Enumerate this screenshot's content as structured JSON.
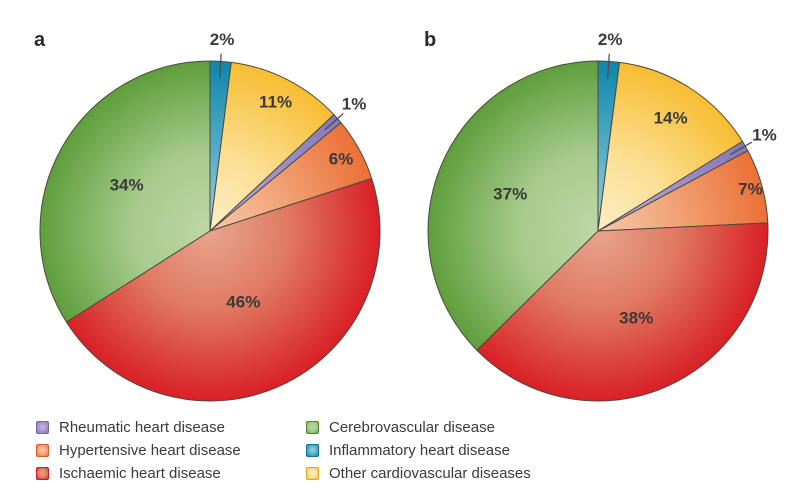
{
  "figure_colors": {
    "background": "#ffffff",
    "slice_stroke": "#4c4a40",
    "leader_line": "#4a4a4a",
    "label_text": "#3a3a3a",
    "panel_label_text": "#2b2b2b",
    "palette": {
      "green": {
        "light": "#bdd7a6",
        "mid": "#a8cb8d",
        "edge": "#5f9e3c",
        "dark": "#4f8a33"
      },
      "red": {
        "light": "#e8a48e",
        "mid": "#e07b62",
        "edge": "#d92026",
        "dark": "#bf1f24"
      },
      "yellow": {
        "light": "#fdeec6",
        "mid": "#fbdf94",
        "edge": "#f7bd32",
        "dark": "#dfa32c"
      },
      "teal": {
        "light": "#9ed2de",
        "mid": "#5aafc8",
        "edge": "#0e86ab",
        "dark": "#0b7394"
      },
      "purple": {
        "light": "#c3b8e0",
        "mid": "#a495cb",
        "edge": "#8577b6",
        "dark": "#7668a6"
      },
      "orange": {
        "light": "#f7c8aa",
        "mid": "#f2a478",
        "edge": "#eb7036",
        "dark": "#d55f28"
      }
    }
  },
  "chart_data": [
    {
      "type": "pie",
      "panel_label": "a",
      "start_angle_deg": 0,
      "direction": "clockwise",
      "slices": [
        {
          "category": "Inflammatory heart disease",
          "value_pct": 2,
          "display_label": "2%",
          "color_key": "teal",
          "label_outside": true
        },
        {
          "category": "Other cardiovascular diseases",
          "value_pct": 11,
          "display_label": "11%",
          "color_key": "yellow",
          "label_r": 0.85
        },
        {
          "category": "Rheumatic heart disease",
          "value_pct": 1,
          "display_label": "1%",
          "color_key": "purple",
          "label_outside": true
        },
        {
          "category": "Hypertensive heart disease",
          "value_pct": 6,
          "display_label": "6%",
          "color_key": "orange",
          "label_r": 0.88
        },
        {
          "category": "Ischaemic heart disease",
          "value_pct": 46,
          "display_label": "46%",
          "color_key": "red",
          "label_r": 0.46
        },
        {
          "category": "Cerebrovascular disease",
          "value_pct": 34,
          "display_label": "34%",
          "color_key": "green",
          "label_r": 0.56
        }
      ]
    },
    {
      "type": "pie",
      "panel_label": "b",
      "start_angle_deg": 0,
      "direction": "clockwise",
      "slices": [
        {
          "category": "Inflammatory heart disease",
          "value_pct": 2,
          "display_label": "2%",
          "color_key": "teal",
          "label_outside": true
        },
        {
          "category": "Other cardiovascular diseases",
          "value_pct": 14,
          "display_label": "14%",
          "color_key": "yellow",
          "label_r": 0.79
        },
        {
          "category": "Rheumatic heart disease",
          "value_pct": 1,
          "display_label": "1%",
          "color_key": "purple",
          "label_outside": true
        },
        {
          "category": "Hypertensive heart disease",
          "value_pct": 7,
          "display_label": "7%",
          "color_key": "orange",
          "label_r": 0.93
        },
        {
          "category": "Ischaemic heart disease",
          "value_pct": 38,
          "display_label": "38%",
          "color_key": "red",
          "label_r": 0.56
        },
        {
          "category": "Cerebrovascular disease",
          "value_pct": 37,
          "display_label": "37%",
          "color_key": "green",
          "label_r": 0.56
        }
      ]
    }
  ],
  "legend": {
    "position": "bottom",
    "columns": [
      [
        {
          "label": "Rheumatic heart disease",
          "color_key": "purple"
        },
        {
          "label": "Hypertensive heart disease",
          "color_key": "orange"
        },
        {
          "label": "Ischaemic heart disease",
          "color_key": "red"
        }
      ],
      [
        {
          "label": "Cerebrovascular disease",
          "color_key": "green"
        },
        {
          "label": "Inflammatory heart disease",
          "color_key": "teal"
        },
        {
          "label": "Other cardiovascular diseases",
          "color_key": "yellow"
        }
      ]
    ]
  }
}
